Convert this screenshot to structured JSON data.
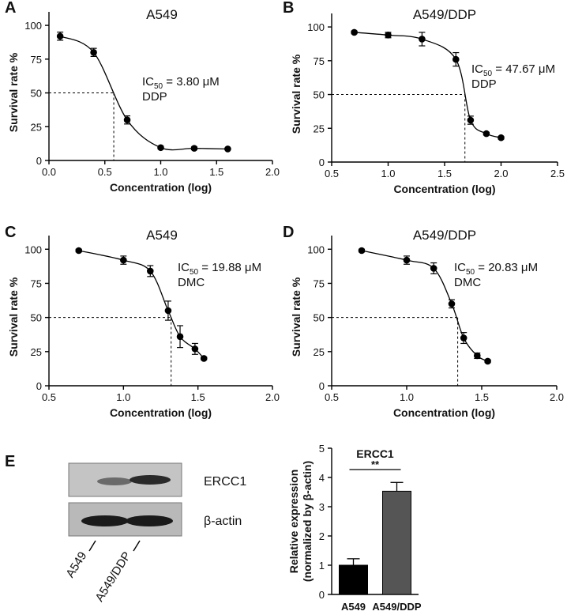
{
  "chart_data": [
    {
      "type": "dose_response",
      "panel_label": "A",
      "title": "A549",
      "xlabel": "Concentration (log)",
      "ylabel": "Survival rate %",
      "x": [
        0.1,
        0.4,
        0.7,
        1.0,
        1.3,
        1.6
      ],
      "values": [
        92,
        80,
        30,
        9.5,
        9,
        8.5
      ],
      "errors": [
        3,
        3,
        3,
        1,
        1,
        0.5
      ],
      "color": "#000000",
      "xlim": [
        0,
        2
      ],
      "xticks": [
        {
          "value": 0,
          "label": "0.0"
        },
        0.5,
        {
          "value": 1,
          "label": "1.0"
        },
        1.5,
        {
          "value": 2,
          "label": "2.0"
        }
      ],
      "ylim": [
        0,
        110
      ],
      "yticks": [
        0,
        25,
        50,
        75,
        100
      ],
      "ic50_line": {
        "x": 0.58,
        "y": 50
      },
      "annotation": {
        "text": "IC",
        "subscript": "50",
        "suffix": " = 3.80 μM",
        "drug": "DDP"
      }
    },
    {
      "type": "dose_response",
      "panel_label": "B",
      "title": "A549/DDP",
      "xlabel": "Concentration (log)",
      "ylabel": "Survival rate %",
      "x": [
        0.7,
        1.0,
        1.3,
        1.6,
        1.73,
        1.87,
        2.0
      ],
      "values": [
        96,
        94,
        91,
        76,
        31,
        21,
        18
      ],
      "errors": [
        1,
        2,
        5,
        5,
        3,
        1,
        1
      ],
      "color": "#000000",
      "xlim": [
        0.5,
        2.5
      ],
      "xticks": [
        0.5,
        {
          "value": 1,
          "label": "1.0"
        },
        1.5,
        {
          "value": 2,
          "label": "2.0"
        },
        2.5
      ],
      "ylim": [
        0,
        110
      ],
      "yticks": [
        0,
        25,
        50,
        75,
        100
      ],
      "ic50_line": {
        "x": 1.68,
        "y": 50
      },
      "annotation": {
        "text": "IC",
        "subscript": "50",
        "suffix": " = 47.67 μM",
        "drug": "DDP"
      }
    },
    {
      "type": "dose_response",
      "panel_label": "C",
      "title": "A549",
      "xlabel": "Concentration (log)",
      "ylabel": "Survival rate %",
      "x": [
        0.7,
        1.0,
        1.18,
        1.3,
        1.38,
        1.48,
        1.54
      ],
      "values": [
        99,
        92,
        84,
        55,
        36,
        27,
        20
      ],
      "errors": [
        1,
        3,
        4,
        7,
        8,
        4,
        1
      ],
      "color": "#000000",
      "xlim": [
        0.5,
        2.0
      ],
      "xticks": [
        0.5,
        {
          "value": 1,
          "label": "1.0"
        },
        1.5,
        {
          "value": 2,
          "label": "2.0"
        }
      ],
      "ylim": [
        0,
        110
      ],
      "yticks": [
        0,
        25,
        50,
        75,
        100
      ],
      "ic50_line": {
        "x": 1.32,
        "y": 50
      },
      "annotation": {
        "text": "IC",
        "subscript": "50",
        "suffix": " = 19.88 μM",
        "drug": "DMC"
      }
    },
    {
      "type": "dose_response",
      "panel_label": "D",
      "title": "A549/DDP",
      "xlabel": "Concentration (log)",
      "ylabel": "Survival rate %",
      "x": [
        0.7,
        1.0,
        1.18,
        1.3,
        1.38,
        1.47,
        1.54
      ],
      "values": [
        99,
        92,
        86,
        60,
        35,
        22,
        18
      ],
      "errors": [
        1,
        3,
        4,
        3,
        4,
        2,
        1
      ],
      "color": "#000000",
      "xlim": [
        0.5,
        2.0
      ],
      "xticks": [
        0.5,
        {
          "value": 1,
          "label": "1.0"
        },
        1.5,
        {
          "value": 2,
          "label": "2.0"
        }
      ],
      "ylim": [
        0,
        110
      ],
      "yticks": [
        0,
        25,
        50,
        75,
        100
      ],
      "ic50_line": {
        "x": 1.34,
        "y": 50
      },
      "annotation": {
        "text": "IC",
        "subscript": "50",
        "suffix": " = 20.83 μM",
        "drug": "DMC"
      }
    },
    {
      "type": "bar",
      "title": "ERCC1",
      "ylabel": [
        "Relative expression",
        "(normalized by β-actin)"
      ],
      "categories": [
        "A549",
        "A549/DDP"
      ],
      "values": [
        1.0,
        3.53
      ],
      "errors": [
        0.22,
        0.3
      ],
      "colors": [
        "#000000",
        "#555555"
      ],
      "ylim": [
        0,
        5
      ],
      "yticks": [
        0,
        1,
        2,
        3,
        4,
        5
      ],
      "significance": "**"
    }
  ],
  "blot": {
    "panel_label": "E",
    "bands": [
      "ERCC1",
      "β-actin"
    ],
    "lanes": [
      "A549",
      "A549/DDP"
    ]
  }
}
